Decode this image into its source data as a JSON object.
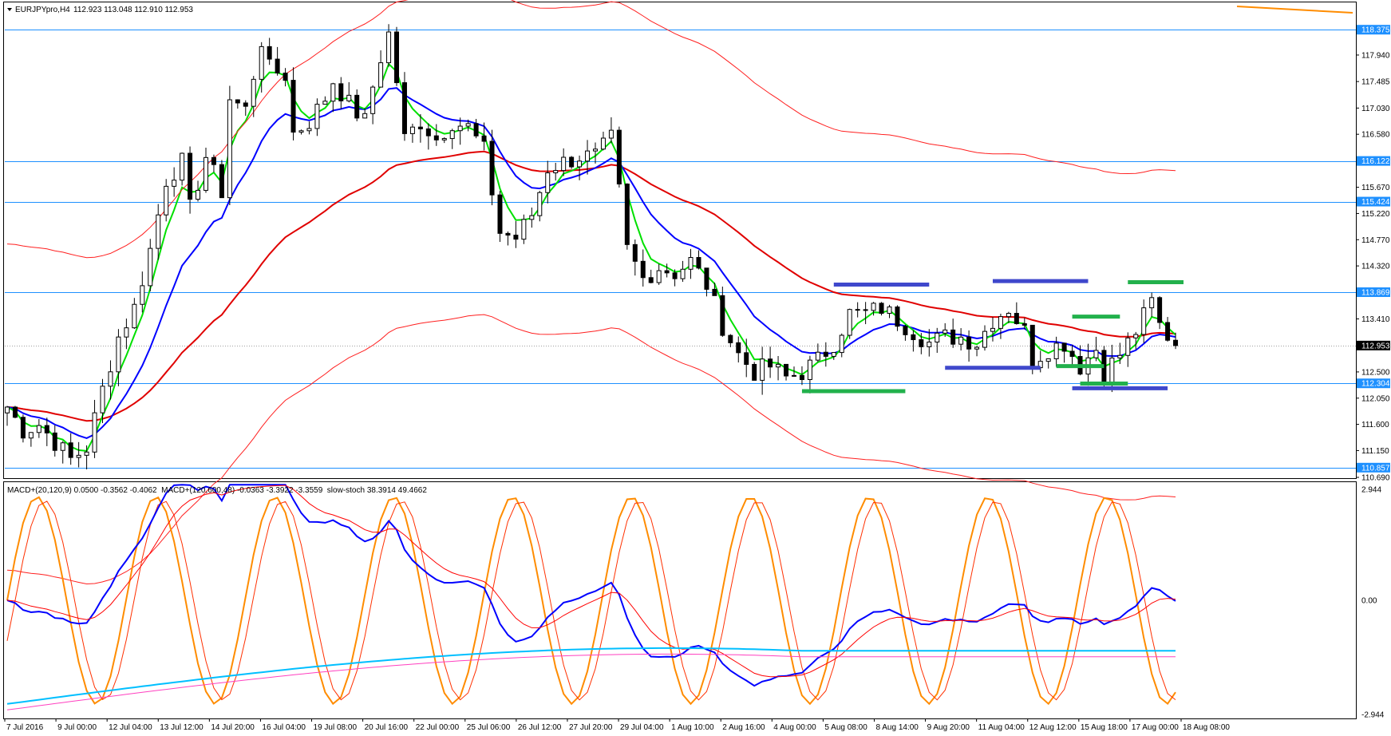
{
  "main": {
    "title": "EURJPYpro,H4",
    "ohlc": "112.923 113.048 112.910 112.953",
    "scale_min": 110.69,
    "scale_max": 118.83,
    "price_ticks": [
      "118.375",
      "117.940",
      "117.485",
      "117.030",
      "116.580",
      "116.122",
      "115.670",
      "115.424",
      "115.220",
      "114.770",
      "114.320",
      "113.869",
      "113.410",
      "112.953",
      "112.500",
      "112.304",
      "112.050",
      "111.600",
      "111.150",
      "110.857",
      "110.690"
    ],
    "horizontal_levels": [
      118.375,
      116.122,
      115.424,
      113.869,
      112.304,
      110.857
    ],
    "current_price": 112.953,
    "level_tags": [
      "118.375",
      "116.122",
      "115.424",
      "113.869",
      "112.953",
      "112.304",
      "110.857"
    ],
    "colors": {
      "bull": "#ffffff",
      "bear": "#000000",
      "level": "#1e90ff",
      "ma_fast": "#00e000",
      "ma_mid": "#0000ff",
      "ma_slow": "#e00000",
      "band": "#ff2020",
      "orange": "#ff8c00",
      "marker_blue": "#3f48cc",
      "marker_green": "#22b14c"
    }
  },
  "indicator": {
    "title": "MACD+(20,120,9) 0.0500 -0.3562 -0.4062  MACD+(120,600,48) -0.0363 -3.3922 -3.3559  slow-stoch 38.3914 49.4662",
    "ticks": [
      "2.944",
      "0.00",
      "-2.944"
    ],
    "scale_min": -2.944,
    "scale_max": 2.944
  },
  "time_labels": [
    "7 Jul 2016",
    "9 Jul 00:00",
    "12 Jul 04:00",
    "13 Jul 12:00",
    "14 Jul 20:00",
    "16 Jul 04:00",
    "19 Jul 08:00",
    "20 Jul 16:00",
    "22 Jul 00:00",
    "25 Jul 06:00",
    "26 Jul 12:00",
    "27 Jul 20:00",
    "29 Jul 04:00",
    "1 Aug 10:00",
    "2 Aug 16:00",
    "4 Aug 00:00",
    "5 Aug 08:00",
    "8 Aug 14:00",
    "9 Aug 20:00",
    "11 Aug 04:00",
    "12 Aug 12:00",
    "15 Aug 18:00",
    "17 Aug 00:00",
    "18 Aug 08:00"
  ],
  "chart_data": {
    "type": "candlestick",
    "symbol": "EURJPYpro",
    "timeframe": "H4",
    "close_path": [
      [
        0,
        111.9
      ],
      [
        2,
        111.5
      ],
      [
        4,
        111.6
      ],
      [
        6,
        111.3
      ],
      [
        8,
        111.0
      ],
      [
        10,
        111.2
      ],
      [
        12,
        112.2
      ],
      [
        14,
        113.1
      ],
      [
        16,
        113.6
      ],
      [
        18,
        114.6
      ],
      [
        20,
        115.8
      ],
      [
        22,
        116.1
      ],
      [
        23,
        115.3
      ],
      [
        25,
        116.2
      ],
      [
        27,
        115.6
      ],
      [
        28,
        117.2
      ],
      [
        30,
        117.0
      ],
      [
        32,
        118.2
      ],
      [
        33,
        117.7
      ],
      [
        35,
        117.6
      ],
      [
        36,
        116.6
      ],
      [
        38,
        116.8
      ],
      [
        40,
        117.2
      ],
      [
        41,
        117.5
      ],
      [
        43,
        117.1
      ],
      [
        45,
        116.8
      ],
      [
        46,
        117.4
      ],
      [
        47,
        117.9
      ],
      [
        48,
        118.3
      ],
      [
        49,
        117.5
      ],
      [
        50,
        116.5
      ],
      [
        52,
        116.8
      ],
      [
        54,
        116.5
      ],
      [
        56,
        116.8
      ],
      [
        58,
        116.7
      ],
      [
        60,
        116.3
      ],
      [
        62,
        114.9
      ],
      [
        64,
        114.8
      ],
      [
        66,
        115.2
      ],
      [
        68,
        116.0
      ],
      [
        70,
        116.1
      ],
      [
        72,
        116.2
      ],
      [
        74,
        116.2
      ],
      [
        76,
        116.5
      ],
      [
        77,
        115.6
      ],
      [
        78,
        114.6
      ],
      [
        80,
        114.1
      ],
      [
        82,
        114.3
      ],
      [
        84,
        114.2
      ],
      [
        86,
        114.4
      ],
      [
        88,
        114.0
      ],
      [
        90,
        113.3
      ],
      [
        92,
        112.8
      ],
      [
        94,
        112.5
      ],
      [
        96,
        112.6
      ],
      [
        98,
        112.4
      ],
      [
        100,
        112.5
      ],
      [
        102,
        112.7
      ],
      [
        104,
        113.0
      ],
      [
        106,
        113.5
      ],
      [
        108,
        113.5
      ],
      [
        110,
        113.6
      ],
      [
        112,
        113.4
      ],
      [
        114,
        113.2
      ],
      [
        116,
        113.0
      ],
      [
        118,
        113.1
      ],
      [
        120,
        113.1
      ],
      [
        122,
        113.0
      ],
      [
        124,
        113.4
      ],
      [
        126,
        113.6
      ],
      [
        128,
        113.2
      ],
      [
        129,
        112.7
      ],
      [
        131,
        112.9
      ],
      [
        133,
        113.0
      ],
      [
        135,
        112.6
      ],
      [
        137,
        112.9
      ],
      [
        138,
        112.5
      ],
      [
        140,
        112.8
      ],
      [
        142,
        113.2
      ],
      [
        144,
        113.7
      ],
      [
        145,
        113.3
      ],
      [
        147,
        112.95
      ]
    ],
    "overlays": [
      "MA fast (green)",
      "MA mid (blue)",
      "MA slow (red)",
      "envelope bands (red thin)"
    ],
    "indicator_series": [
      "MACD+(20,120,9)",
      "MACD+(120,600,48)",
      "slow-stoch"
    ],
    "last_values": {
      "ohlc": [
        112.923,
        113.048,
        112.91,
        112.953
      ],
      "macd1": [
        0.05,
        -0.3562,
        -0.4062
      ],
      "macd2": [
        -0.0363,
        -3.3922,
        -3.3559
      ],
      "stoch": [
        38.3914,
        49.4662
      ]
    }
  }
}
